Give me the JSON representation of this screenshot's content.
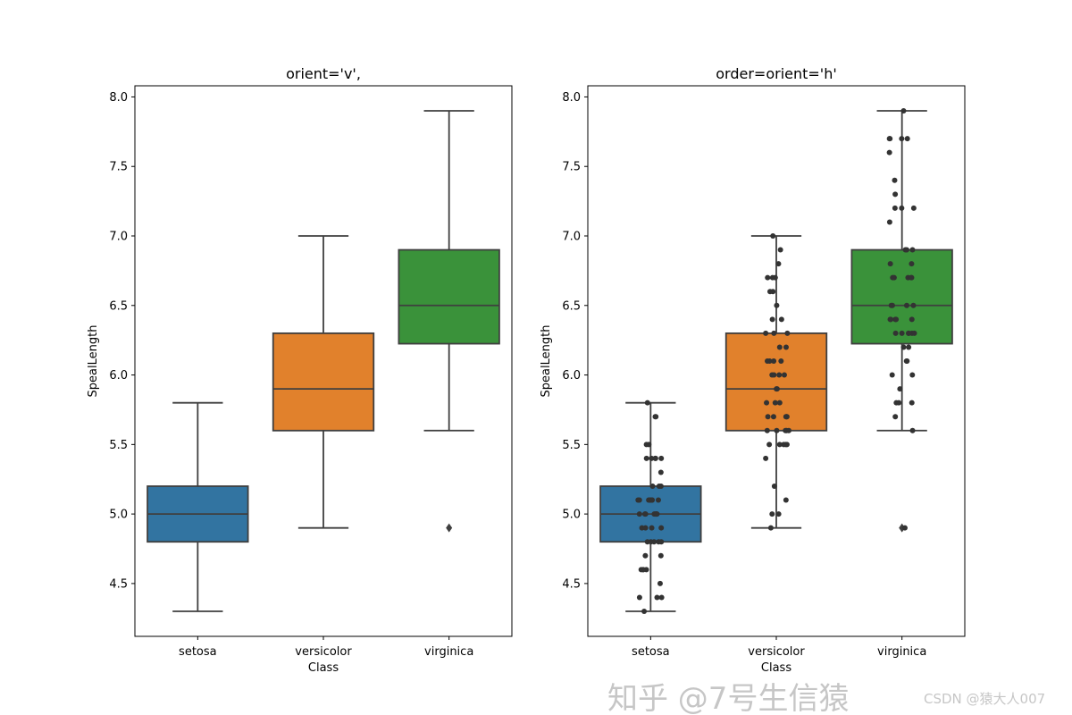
{
  "chart_data": [
    {
      "type": "box",
      "title": "orient='v',",
      "xlabel": "Class",
      "ylabel": "SpealLength",
      "ylim": [
        4.12,
        8.08
      ],
      "yticks": [
        "4.5",
        "5.0",
        "5.5",
        "6.0",
        "6.5",
        "7.0",
        "7.5",
        "8.0"
      ],
      "categories": [
        "setosa",
        "versicolor",
        "virginica"
      ],
      "colors": [
        "#3274a1",
        "#e1812c",
        "#3a923a"
      ],
      "boxes": [
        {
          "q1": 4.8,
          "median": 5.0,
          "q3": 5.2,
          "whisker_low": 4.3,
          "whisker_high": 5.8,
          "outliers": []
        },
        {
          "q1": 5.6,
          "median": 5.9,
          "q3": 6.3,
          "whisker_low": 4.9,
          "whisker_high": 7.0,
          "outliers": []
        },
        {
          "q1": 6.225,
          "median": 6.5,
          "q3": 6.9,
          "whisker_low": 5.6,
          "whisker_high": 7.9,
          "outliers": [
            4.9
          ]
        }
      ],
      "strip": false
    },
    {
      "type": "box",
      "title": "order=orient='h'",
      "xlabel": "Class",
      "ylabel": "SpealLength",
      "ylim": [
        4.12,
        8.08
      ],
      "yticks": [
        "4.5",
        "5.0",
        "5.5",
        "6.0",
        "6.5",
        "7.0",
        "7.5",
        "8.0"
      ],
      "categories": [
        "setosa",
        "versicolor",
        "virginica"
      ],
      "colors": [
        "#3274a1",
        "#e1812c",
        "#3a923a"
      ],
      "boxes": [
        {
          "q1": 4.8,
          "median": 5.0,
          "q3": 5.2,
          "whisker_low": 4.3,
          "whisker_high": 5.8,
          "outliers": []
        },
        {
          "q1": 5.6,
          "median": 5.9,
          "q3": 6.3,
          "whisker_low": 4.9,
          "whisker_high": 7.0,
          "outliers": []
        },
        {
          "q1": 6.225,
          "median": 6.5,
          "q3": 6.9,
          "whisker_low": 5.6,
          "whisker_high": 7.9,
          "outliers": [
            4.9
          ]
        }
      ],
      "strip": true,
      "strip_color": "#333333",
      "points": [
        [
          5.1,
          4.9,
          4.7,
          4.6,
          5.0,
          5.4,
          4.6,
          5.0,
          4.4,
          4.9,
          5.4,
          4.8,
          4.8,
          4.3,
          5.8,
          5.7,
          5.4,
          5.1,
          5.7,
          5.1,
          5.4,
          5.1,
          4.6,
          5.1,
          4.8,
          5.0,
          5.0,
          5.2,
          5.2,
          4.7,
          4.8,
          5.4,
          5.2,
          5.5,
          4.9,
          5.0,
          5.5,
          4.9,
          4.4,
          5.1,
          5.0,
          4.5,
          4.4,
          5.0,
          5.1,
          4.8,
          5.1,
          4.6,
          5.3,
          5.0
        ],
        [
          7.0,
          6.4,
          6.9,
          5.5,
          6.5,
          5.7,
          6.3,
          4.9,
          6.6,
          5.2,
          5.0,
          5.9,
          6.0,
          6.1,
          5.6,
          6.7,
          5.6,
          5.8,
          6.2,
          5.6,
          5.9,
          6.1,
          6.3,
          6.1,
          6.4,
          6.6,
          6.8,
          6.7,
          6.0,
          5.7,
          5.5,
          5.5,
          5.8,
          6.0,
          5.4,
          6.0,
          6.7,
          6.3,
          5.6,
          5.5,
          5.5,
          6.1,
          5.8,
          5.0,
          5.6,
          5.7,
          5.7,
          6.2,
          5.1,
          5.7
        ],
        [
          6.3,
          5.8,
          7.1,
          6.3,
          6.5,
          7.6,
          4.9,
          7.3,
          6.7,
          7.2,
          6.5,
          6.4,
          6.8,
          5.7,
          5.8,
          6.4,
          6.5,
          7.7,
          7.7,
          6.0,
          6.9,
          5.6,
          7.7,
          6.3,
          6.7,
          7.2,
          6.2,
          6.1,
          6.4,
          7.2,
          7.4,
          7.9,
          6.4,
          6.3,
          6.1,
          7.7,
          6.3,
          6.4,
          6.0,
          6.9,
          6.7,
          6.9,
          5.8,
          6.8,
          6.7,
          6.7,
          6.3,
          6.5,
          6.2,
          5.9
        ]
      ]
    }
  ],
  "watermark": {
    "zhihu": "知乎 @7号生信猿",
    "csdn": "CSDN @猿大人007"
  }
}
